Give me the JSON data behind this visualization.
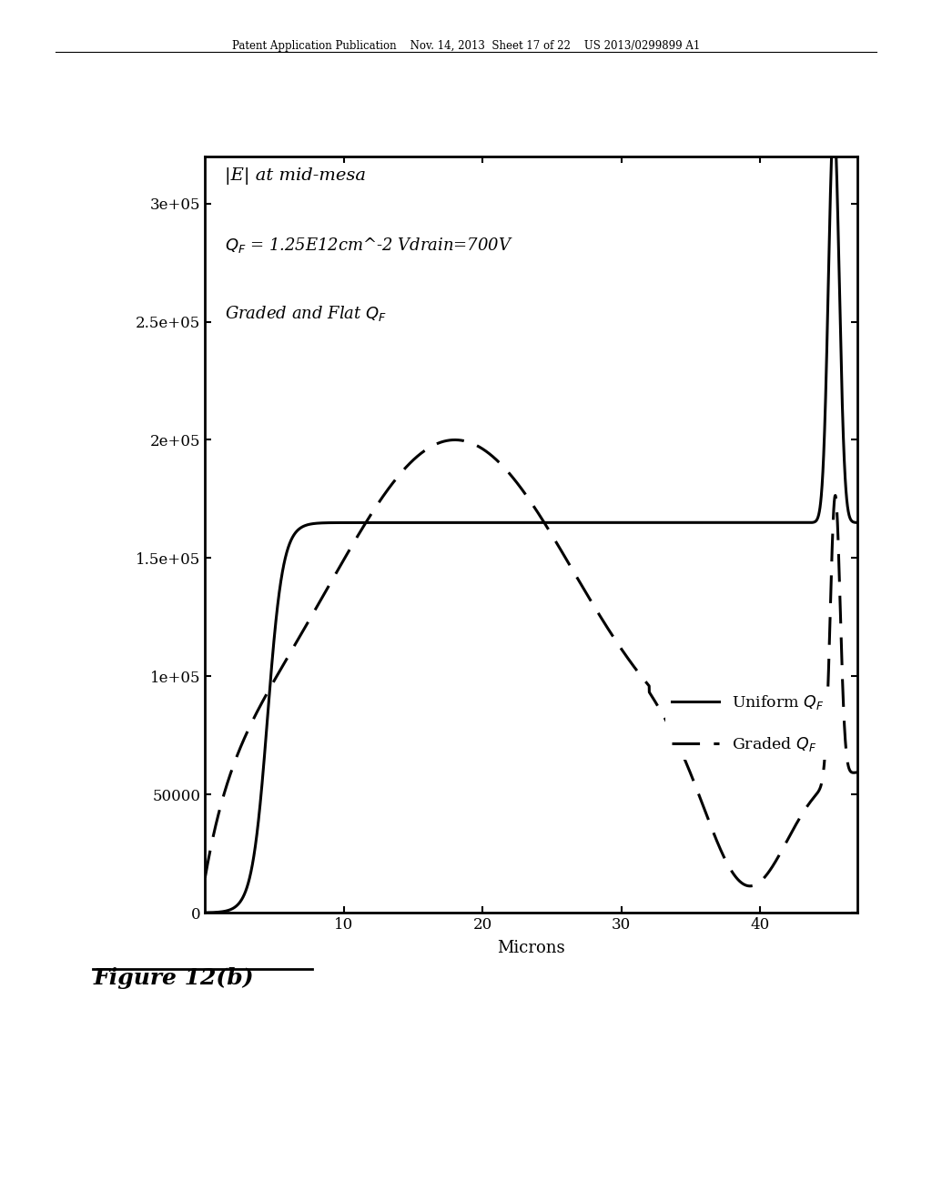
{
  "header": "Patent Application Publication    Nov. 14, 2013  Sheet 17 of 22    US 2013/0299899 A1",
  "xlabel": "Microns",
  "xlim": [
    0,
    47
  ],
  "ylim": [
    0,
    320000
  ],
  "yticks": [
    0,
    50000,
    100000,
    150000,
    200000,
    250000,
    300000
  ],
  "ytick_labels": [
    "0",
    "50000",
    "1e+05",
    "1.5e+05",
    "2e+05",
    "2.5e+05",
    "3e+05"
  ],
  "xticks": [
    10,
    20,
    30,
    40
  ],
  "legend_solid": "Uniform $Q_F$",
  "legend_dashed": "Graded $Q_F$",
  "annotation_line1": "|E| at mid-mesa",
  "annotation_line2": "$Q_F$ = 1.25E12cm^-2 Vdrain=700V",
  "annotation_line3": "Graded and Flat $Q_F$",
  "figure_label": "Figure 12(b)",
  "bg_color": "#ffffff",
  "line_color": "#000000"
}
